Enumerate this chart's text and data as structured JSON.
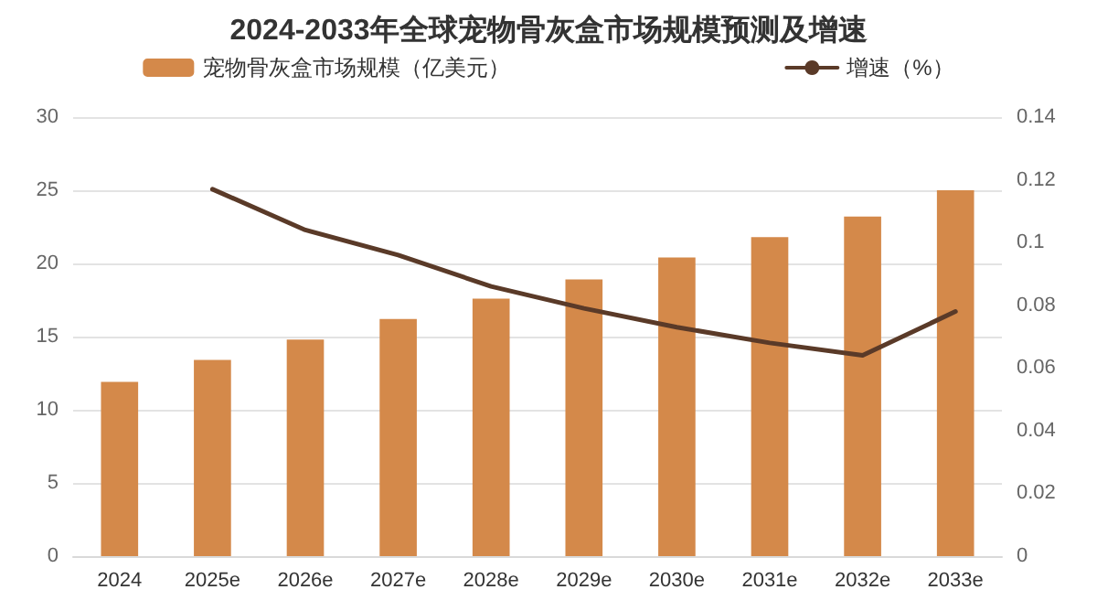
{
  "chart_data": {
    "type": "bar",
    "title": "2024-2033年全球宠物骨灰盒市场规模预测及增速",
    "categories": [
      "2024",
      "2025e",
      "2026e",
      "2027e",
      "2028e",
      "2029e",
      "2030e",
      "2031e",
      "2032e",
      "2033e"
    ],
    "series": [
      {
        "name": "宠物骨灰盒市场规模（亿美元）",
        "color": "#d4894a",
        "values": [
          11.9,
          13.4,
          14.8,
          16.2,
          17.6,
          18.9,
          20.4,
          21.8,
          23.2,
          25.0
        ]
      },
      {
        "name": "增速（%）",
        "type": "line",
        "axis": "y2",
        "color": "#5a3a28",
        "values": [
          null,
          0.117,
          0.104,
          0.096,
          0.086,
          0.079,
          0.073,
          0.068,
          0.064,
          0.078
        ]
      }
    ],
    "ylim": [
      0,
      30
    ],
    "yticks": [
      0,
      5,
      10,
      15,
      20,
      25,
      30
    ],
    "y2lim": [
      0,
      0.14
    ],
    "y2ticks": [
      0,
      0.02,
      0.04,
      0.06,
      0.08,
      0.1,
      0.12,
      0.14
    ],
    "grid": "y",
    "legend": "top",
    "marker": "none",
    "line_style": "solid"
  }
}
